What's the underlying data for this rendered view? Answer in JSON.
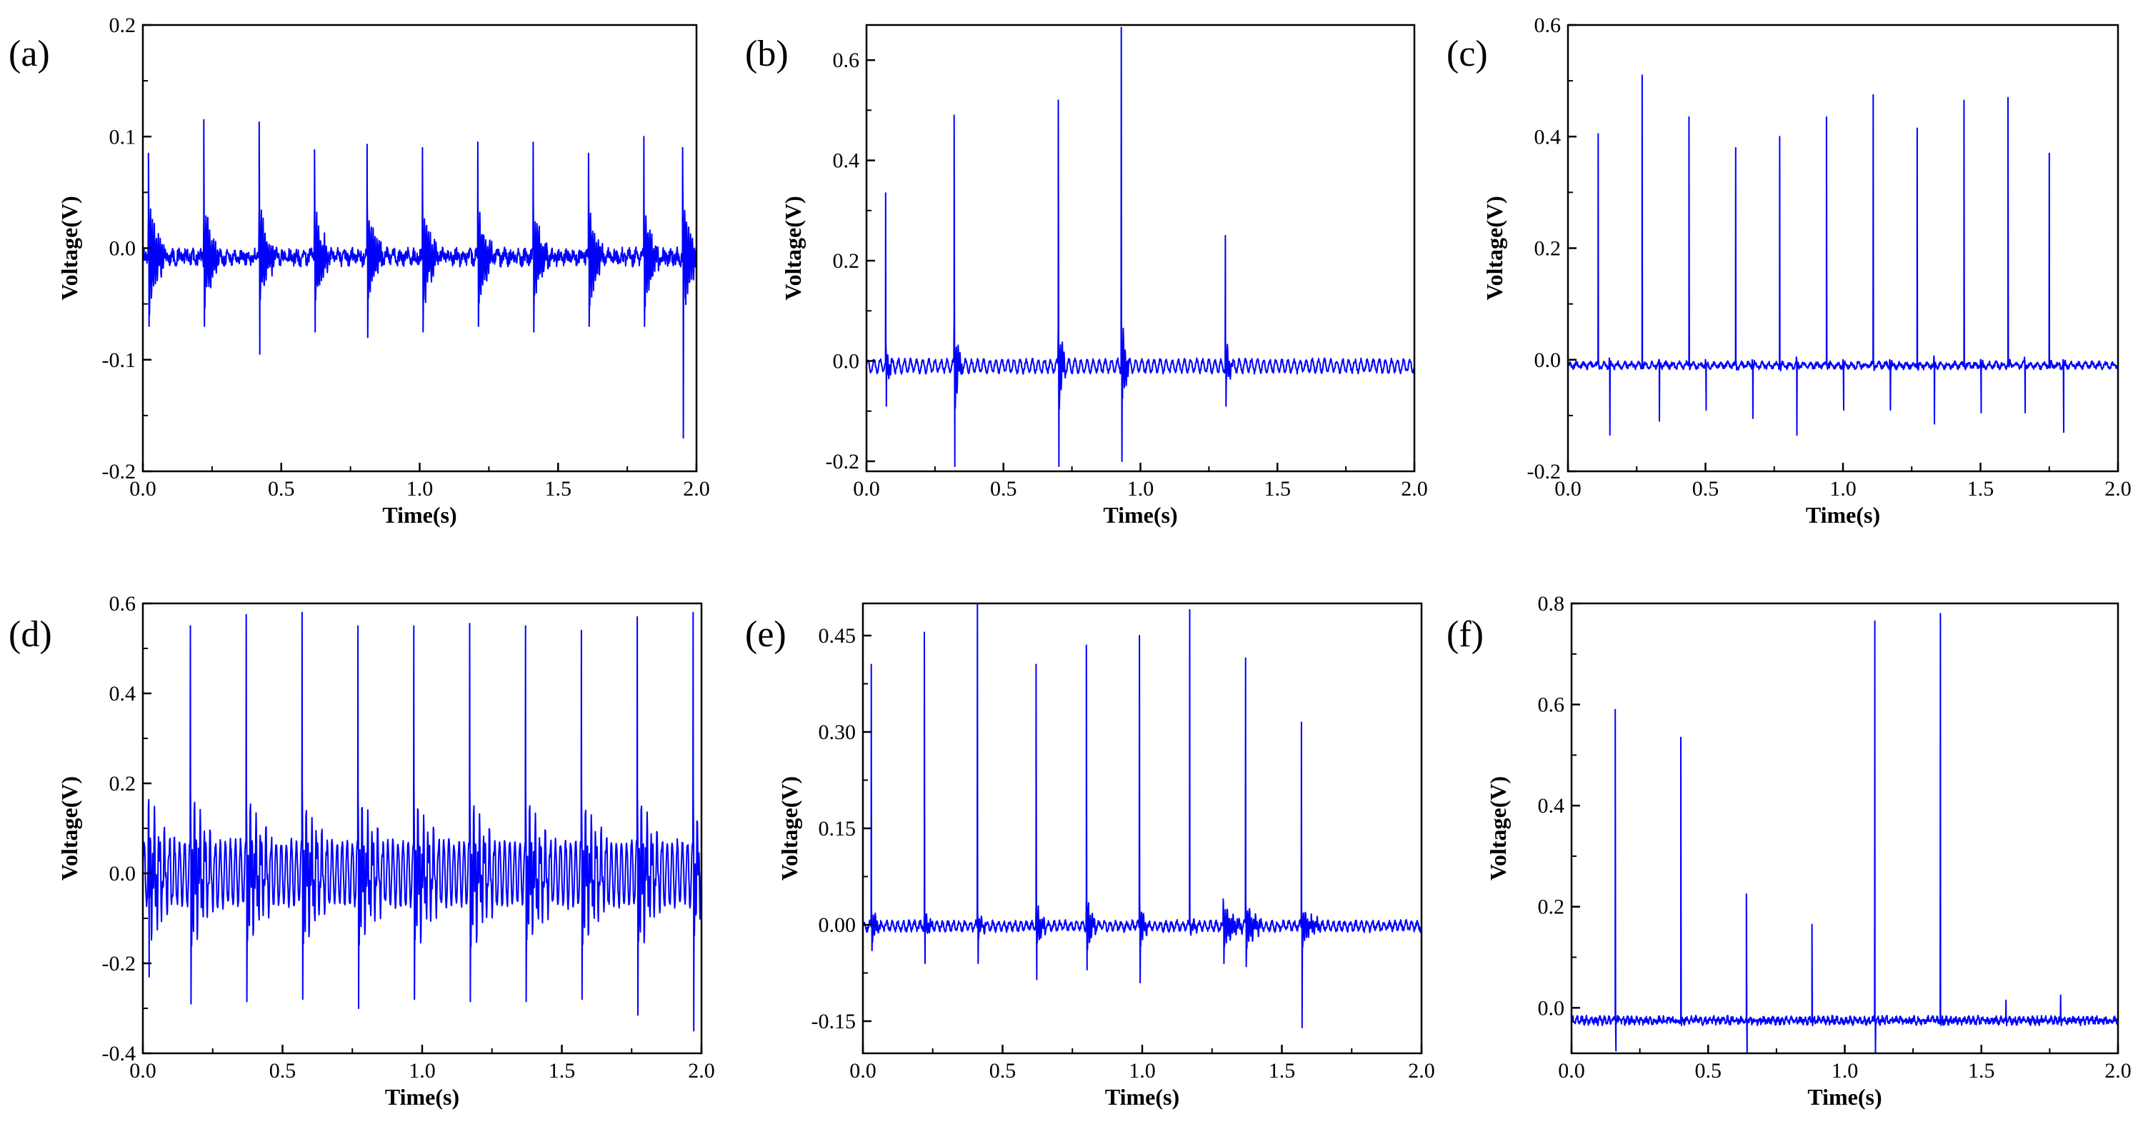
{
  "figure": {
    "series_color": "#0000ff",
    "axis_color": "#000000"
  },
  "chart_data": [
    {
      "id": "a",
      "panel_label": "(a)",
      "type": "line",
      "xlabel": "Time(s)",
      "ylabel": "Voltage(V)",
      "xlim": [
        0,
        2.0
      ],
      "ylim": [
        -0.2,
        0.2
      ],
      "xticks": [
        "0.0",
        "0.5",
        "1.0",
        "1.5",
        "2.0"
      ],
      "yticks": [
        "-0.2",
        "-0.1",
        "0.0",
        "0.1",
        "0.2"
      ],
      "signal": {
        "baseline": -0.008,
        "noise": 0.006,
        "osc_amp": 0.003,
        "osc_freq": 40,
        "spikes": [
          {
            "t": 0.02,
            "peak": 0.085,
            "trough": -0.07,
            "ring_amp": 0.06,
            "ring_count": 8
          },
          {
            "t": 0.22,
            "peak": 0.115,
            "trough": -0.07,
            "ring_amp": 0.05,
            "ring_count": 8
          },
          {
            "t": 0.42,
            "peak": 0.113,
            "trough": -0.095,
            "ring_amp": 0.05,
            "ring_count": 8
          },
          {
            "t": 0.62,
            "peak": 0.088,
            "trough": -0.075,
            "ring_amp": 0.05,
            "ring_count": 8
          },
          {
            "t": 0.81,
            "peak": 0.093,
            "trough": -0.08,
            "ring_amp": 0.05,
            "ring_count": 8
          },
          {
            "t": 1.01,
            "peak": 0.09,
            "trough": -0.075,
            "ring_amp": 0.05,
            "ring_count": 8
          },
          {
            "t": 1.21,
            "peak": 0.095,
            "trough": -0.07,
            "ring_amp": 0.05,
            "ring_count": 8
          },
          {
            "t": 1.41,
            "peak": 0.095,
            "trough": -0.075,
            "ring_amp": 0.05,
            "ring_count": 8
          },
          {
            "t": 1.61,
            "peak": 0.085,
            "trough": -0.07,
            "ring_amp": 0.05,
            "ring_count": 8
          },
          {
            "t": 1.81,
            "peak": 0.1,
            "trough": -0.07,
            "ring_amp": 0.05,
            "ring_count": 8
          },
          {
            "t": 1.95,
            "peak": 0.09,
            "trough": -0.17,
            "ring_amp": 0.06,
            "ring_count": 8
          }
        ]
      }
    },
    {
      "id": "b",
      "panel_label": "(b)",
      "type": "line",
      "xlabel": "Time(s)",
      "ylabel": "Voltage(V)",
      "xlim": [
        0,
        2.0
      ],
      "ylim": [
        -0.22,
        0.67
      ],
      "xticks": [
        "0.0",
        "0.5",
        "1.0",
        "1.5",
        "2.0"
      ],
      "yticks": [
        "-0.2",
        "0.0",
        "0.2",
        "0.4",
        "0.6"
      ],
      "signal": {
        "baseline": -0.01,
        "noise": 0.004,
        "osc_amp": 0.012,
        "osc_freq": 45,
        "spikes": [
          {
            "t": 0.07,
            "peak": 0.335,
            "trough": -0.09,
            "ring_amp": 0.04,
            "ring_count": 4
          },
          {
            "t": 0.32,
            "peak": 0.49,
            "trough": -0.21,
            "ring_amp": 0.1,
            "ring_count": 4
          },
          {
            "t": 0.7,
            "peak": 0.52,
            "trough": -0.21,
            "ring_amp": 0.1,
            "ring_count": 4
          },
          {
            "t": 0.93,
            "peak": 0.665,
            "trough": -0.2,
            "ring_amp": 0.11,
            "ring_count": 4
          },
          {
            "t": 1.31,
            "peak": 0.25,
            "trough": -0.09,
            "ring_amp": 0.05,
            "ring_count": 4
          }
        ]
      }
    },
    {
      "id": "c",
      "panel_label": "(c)",
      "type": "line",
      "xlabel": "Time(s)",
      "ylabel": "Voltage(V)",
      "xlim": [
        0,
        2.0
      ],
      "ylim": [
        -0.2,
        0.6
      ],
      "xticks": [
        "0.0",
        "0.5",
        "1.0",
        "1.5",
        "2.0"
      ],
      "yticks": [
        "-0.2",
        "0.0",
        "0.2",
        "0.4",
        "0.6"
      ],
      "signal": {
        "baseline": -0.01,
        "noise": 0.004,
        "osc_amp": 0.004,
        "osc_freq": 40,
        "spikes": [
          {
            "t": 0.11,
            "peak": 0.405,
            "trough": -0.01,
            "ring_amp": 0.01,
            "ring_count": 2
          },
          {
            "t": 0.15,
            "peak": 0.0,
            "trough": -0.135,
            "ring_amp": 0.01,
            "ring_count": 2
          },
          {
            "t": 0.27,
            "peak": 0.51,
            "trough": -0.01,
            "ring_amp": 0.01,
            "ring_count": 2
          },
          {
            "t": 0.33,
            "peak": 0.0,
            "trough": -0.11,
            "ring_amp": 0.01,
            "ring_count": 2
          },
          {
            "t": 0.44,
            "peak": 0.435,
            "trough": -0.01,
            "ring_amp": 0.01,
            "ring_count": 2
          },
          {
            "t": 0.5,
            "peak": 0.0,
            "trough": -0.09,
            "ring_amp": 0.01,
            "ring_count": 2
          },
          {
            "t": 0.61,
            "peak": 0.38,
            "trough": -0.01,
            "ring_amp": 0.01,
            "ring_count": 2
          },
          {
            "t": 0.67,
            "peak": 0.0,
            "trough": -0.105,
            "ring_amp": 0.01,
            "ring_count": 2
          },
          {
            "t": 0.77,
            "peak": 0.4,
            "trough": -0.01,
            "ring_amp": 0.01,
            "ring_count": 2
          },
          {
            "t": 0.83,
            "peak": 0.0,
            "trough": -0.135,
            "ring_amp": 0.01,
            "ring_count": 2
          },
          {
            "t": 0.94,
            "peak": 0.435,
            "trough": -0.01,
            "ring_amp": 0.01,
            "ring_count": 2
          },
          {
            "t": 1.0,
            "peak": 0.0,
            "trough": -0.09,
            "ring_amp": 0.01,
            "ring_count": 2
          },
          {
            "t": 1.11,
            "peak": 0.475,
            "trough": -0.01,
            "ring_amp": 0.01,
            "ring_count": 2
          },
          {
            "t": 1.17,
            "peak": 0.0,
            "trough": -0.09,
            "ring_amp": 0.01,
            "ring_count": 2
          },
          {
            "t": 1.27,
            "peak": 0.415,
            "trough": -0.01,
            "ring_amp": 0.01,
            "ring_count": 2
          },
          {
            "t": 1.33,
            "peak": 0.0,
            "trough": -0.115,
            "ring_amp": 0.01,
            "ring_count": 2
          },
          {
            "t": 1.44,
            "peak": 0.465,
            "trough": -0.01,
            "ring_amp": 0.01,
            "ring_count": 2
          },
          {
            "t": 1.5,
            "peak": 0.0,
            "trough": -0.095,
            "ring_amp": 0.01,
            "ring_count": 2
          },
          {
            "t": 1.6,
            "peak": 0.47,
            "trough": -0.01,
            "ring_amp": 0.01,
            "ring_count": 2
          },
          {
            "t": 1.66,
            "peak": 0.0,
            "trough": -0.095,
            "ring_amp": 0.01,
            "ring_count": 2
          },
          {
            "t": 1.75,
            "peak": 0.37,
            "trough": -0.01,
            "ring_amp": 0.01,
            "ring_count": 2
          },
          {
            "t": 1.8,
            "peak": 0.0,
            "trough": -0.13,
            "ring_amp": 0.01,
            "ring_count": 2
          }
        ]
      }
    },
    {
      "id": "d",
      "panel_label": "(d)",
      "type": "line",
      "xlabel": "Time(s)",
      "ylabel": "Voltage(V)",
      "xlim": [
        0,
        2.0
      ],
      "ylim": [
        -0.4,
        0.6
      ],
      "xticks": [
        "0.0",
        "0.5",
        "1.0",
        "1.5",
        "2.0"
      ],
      "yticks": [
        "-0.4",
        "-0.2",
        "0.0",
        "0.2",
        "0.4",
        "0.6"
      ],
      "signal": {
        "baseline": 0.0,
        "noise": 0.01,
        "osc_amp": 0.07,
        "osc_freq": 55,
        "spikes": [
          {
            "t": 0.02,
            "peak": 0.15,
            "trough": -0.23,
            "ring_amp": 0.12,
            "ring_count": 14
          },
          {
            "t": 0.17,
            "peak": 0.55,
            "trough": -0.29,
            "ring_amp": 0.14,
            "ring_count": 14
          },
          {
            "t": 0.37,
            "peak": 0.575,
            "trough": -0.285,
            "ring_amp": 0.14,
            "ring_count": 14
          },
          {
            "t": 0.57,
            "peak": 0.58,
            "trough": -0.28,
            "ring_amp": 0.14,
            "ring_count": 14
          },
          {
            "t": 0.77,
            "peak": 0.55,
            "trough": -0.3,
            "ring_amp": 0.14,
            "ring_count": 14
          },
          {
            "t": 0.97,
            "peak": 0.55,
            "trough": -0.28,
            "ring_amp": 0.14,
            "ring_count": 14
          },
          {
            "t": 1.17,
            "peak": 0.555,
            "trough": -0.285,
            "ring_amp": 0.14,
            "ring_count": 14
          },
          {
            "t": 1.37,
            "peak": 0.55,
            "trough": -0.285,
            "ring_amp": 0.14,
            "ring_count": 14
          },
          {
            "t": 1.57,
            "peak": 0.54,
            "trough": -0.28,
            "ring_amp": 0.14,
            "ring_count": 14
          },
          {
            "t": 1.77,
            "peak": 0.57,
            "trough": -0.315,
            "ring_amp": 0.14,
            "ring_count": 14
          },
          {
            "t": 1.97,
            "peak": 0.58,
            "trough": -0.35,
            "ring_amp": 0.14,
            "ring_count": 6
          }
        ]
      }
    },
    {
      "id": "e",
      "panel_label": "(e)",
      "type": "line",
      "xlabel": "Time(s)",
      "ylabel": "Voltage(V)",
      "xlim": [
        0,
        2.0
      ],
      "ylim": [
        -0.2,
        0.5
      ],
      "xticks": [
        "0.0",
        "0.5",
        "1.0",
        "1.5",
        "2.0"
      ],
      "yticks": [
        "-0.15",
        "0.00",
        "0.15",
        "0.30",
        "0.45"
      ],
      "signal": {
        "baseline": -0.002,
        "noise": 0.004,
        "osc_amp": 0.006,
        "osc_freq": 50,
        "spikes": [
          {
            "t": 0.03,
            "peak": 0.405,
            "trough": -0.04,
            "ring_amp": 0.03,
            "ring_count": 5
          },
          {
            "t": 0.22,
            "peak": 0.455,
            "trough": -0.06,
            "ring_amp": 0.02,
            "ring_count": 5
          },
          {
            "t": 0.41,
            "peak": 0.52,
            "trough": -0.06,
            "ring_amp": 0.02,
            "ring_count": 5
          },
          {
            "t": 0.62,
            "peak": 0.405,
            "trough": -0.085,
            "ring_amp": 0.04,
            "ring_count": 5
          },
          {
            "t": 0.8,
            "peak": 0.435,
            "trough": -0.07,
            "ring_amp": 0.05,
            "ring_count": 5
          },
          {
            "t": 0.99,
            "peak": 0.45,
            "trough": -0.09,
            "ring_amp": 0.04,
            "ring_count": 5
          },
          {
            "t": 1.17,
            "peak": 0.49,
            "trough": -0.005,
            "ring_amp": 0.01,
            "ring_count": 5
          },
          {
            "t": 1.29,
            "peak": 0.04,
            "trough": -0.06,
            "ring_amp": 0.035,
            "ring_count": 10
          },
          {
            "t": 1.37,
            "peak": 0.415,
            "trough": -0.065,
            "ring_amp": 0.04,
            "ring_count": 8
          },
          {
            "t": 1.57,
            "peak": 0.315,
            "trough": -0.16,
            "ring_amp": 0.03,
            "ring_count": 10
          }
        ]
      }
    },
    {
      "id": "f",
      "panel_label": "(f)",
      "type": "line",
      "xlabel": "Time(s)",
      "ylabel": "Voltage(V)",
      "xlim": [
        0,
        2.0
      ],
      "ylim": [
        -0.09,
        0.8
      ],
      "xticks": [
        "0.0",
        "0.5",
        "1.0",
        "1.5",
        "2.0"
      ],
      "yticks": [
        "0.0",
        "0.2",
        "0.4",
        "0.6",
        "0.8"
      ],
      "signal": {
        "baseline": -0.025,
        "noise": 0.006,
        "osc_amp": 0.004,
        "osc_freq": 60,
        "spikes": [
          {
            "t": 0.16,
            "peak": 0.59,
            "trough": -0.085,
            "ring_amp": 0.005,
            "ring_count": 2
          },
          {
            "t": 0.4,
            "peak": 0.535,
            "trough": -0.035,
            "ring_amp": 0.005,
            "ring_count": 2
          },
          {
            "t": 0.64,
            "peak": 0.225,
            "trough": -0.09,
            "ring_amp": 0.005,
            "ring_count": 2
          },
          {
            "t": 0.88,
            "peak": 0.165,
            "trough": -0.035,
            "ring_amp": 0.005,
            "ring_count": 2
          },
          {
            "t": 1.11,
            "peak": 0.765,
            "trough": -0.09,
            "ring_amp": 0.005,
            "ring_count": 2
          },
          {
            "t": 1.35,
            "peak": 0.78,
            "trough": -0.035,
            "ring_amp": 0.005,
            "ring_count": 2
          },
          {
            "t": 1.59,
            "peak": 0.015,
            "trough": -0.035,
            "ring_amp": 0.004,
            "ring_count": 2
          },
          {
            "t": 1.79,
            "peak": 0.025,
            "trough": -0.035,
            "ring_amp": 0.004,
            "ring_count": 2
          }
        ]
      }
    }
  ]
}
